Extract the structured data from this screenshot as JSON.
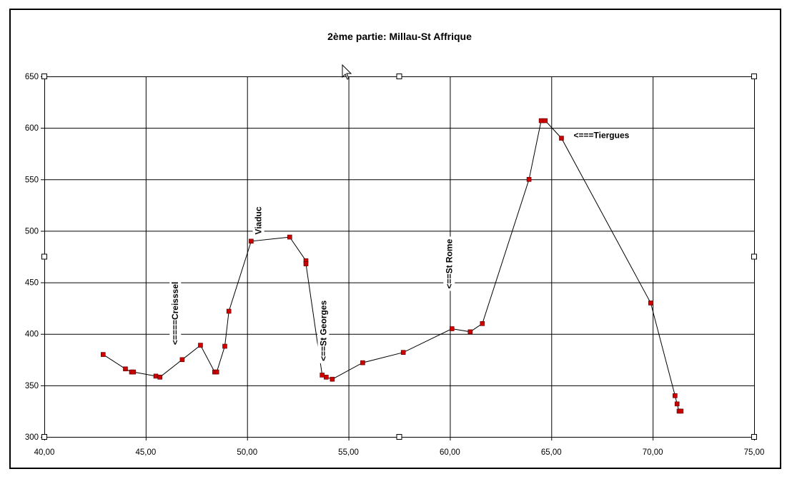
{
  "chart_data": {
    "type": "line",
    "title": "2ème partie: Millau-St Affrique",
    "xlabel": "",
    "ylabel": "",
    "xlim": [
      40,
      75
    ],
    "ylim": [
      300,
      650
    ],
    "x_ticks": [
      40,
      45,
      50,
      55,
      60,
      65,
      70,
      75
    ],
    "x_tick_labels": [
      "40,00",
      "45,00",
      "50,00",
      "55,00",
      "60,00",
      "65,00",
      "70,00",
      "75,00"
    ],
    "y_ticks": [
      300,
      350,
      400,
      450,
      500,
      550,
      600,
      650
    ],
    "y_tick_labels": [
      "300",
      "350",
      "400",
      "450",
      "500",
      "550",
      "600",
      "650"
    ],
    "grid": true,
    "legend": "none",
    "colors": {
      "line": "#000000",
      "marker": "#cc0000",
      "grid": "#000000"
    },
    "series": [
      {
        "x": [
          42.9,
          44.0,
          44.3,
          44.4,
          45.5,
          45.7,
          46.8,
          47.7,
          48.4,
          48.5,
          48.9,
          49.1,
          50.2,
          52.1,
          52.9,
          52.9,
          53.7,
          53.9,
          54.2,
          55.7,
          57.7,
          60.1,
          61.0,
          61.6,
          63.9,
          64.5,
          64.7,
          65.5,
          69.9,
          71.1,
          71.2,
          71.3,
          71.4
        ],
        "y": [
          380,
          366,
          363,
          363,
          359,
          358,
          375,
          389,
          363,
          363,
          388,
          422,
          490,
          494,
          471,
          468,
          360,
          358,
          356,
          372,
          382,
          405,
          402,
          410,
          550,
          607,
          607,
          590,
          430,
          340,
          332,
          325,
          325
        ]
      }
    ],
    "annotations": [
      {
        "text": "<====Creisssel",
        "x": 46.6,
        "y": 420,
        "rotation": -90
      },
      {
        "text": "Viaduc",
        "x": 50.7,
        "y": 510,
        "rotation": -90
      },
      {
        "text": "<==St Georges",
        "x": 53.9,
        "y": 403,
        "rotation": -90
      },
      {
        "text": "<==St Rome",
        "x": 60.1,
        "y": 468,
        "rotation": -90
      },
      {
        "text": "<===Tiergues",
        "x": 66.1,
        "y": 590,
        "rotation": 0
      }
    ]
  }
}
